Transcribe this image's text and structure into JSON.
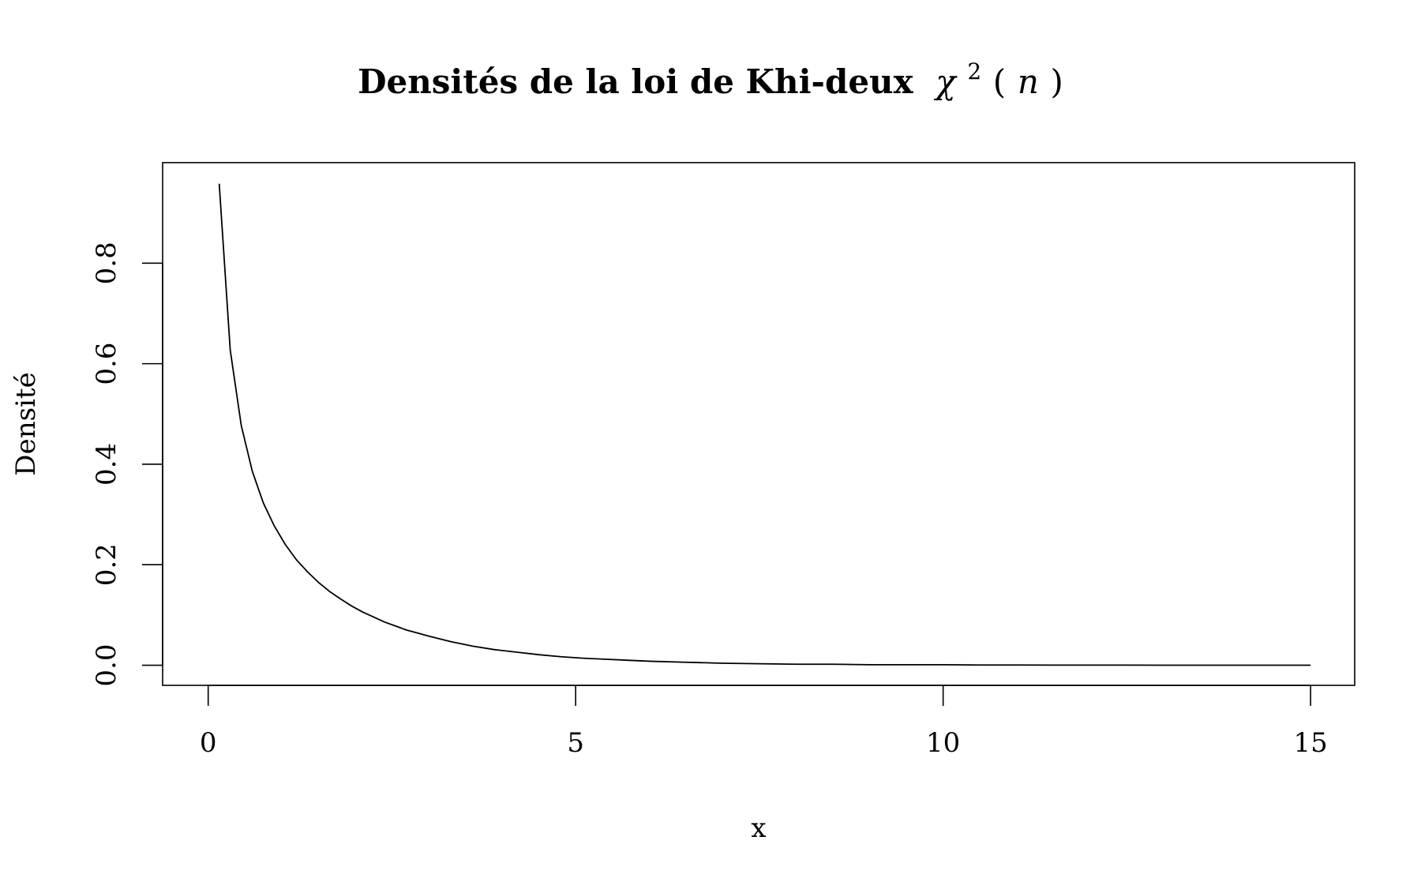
{
  "chart_data": {
    "type": "line",
    "title": {
      "text": "Densités de la loi de Khi-deux",
      "math_symbol": "χ",
      "math_superscript": "2",
      "math_open": "(",
      "math_var": "n",
      "math_close": ")"
    },
    "xlabel": "x",
    "ylabel": "Densité",
    "xlim": [
      -0.62,
      15.6
    ],
    "ylim": [
      -0.04,
      1.0
    ],
    "xticks": [
      0,
      5,
      10,
      15
    ],
    "xtick_labels": [
      "0",
      "5",
      "10",
      "15"
    ],
    "yticks": [
      0.0,
      0.2,
      0.4,
      0.6,
      0.8
    ],
    "ytick_labels": [
      "0.0",
      "0.2",
      "0.4",
      "0.6",
      "0.8"
    ],
    "grid": false,
    "legend": "none",
    "line_color": "#000000",
    "series": [
      {
        "x": [
          0.15,
          0.3,
          0.45,
          0.6,
          0.75,
          0.9,
          1.05,
          1.2,
          1.35,
          1.5,
          1.65,
          1.8,
          1.95,
          2.1,
          2.25,
          2.4,
          2.55,
          2.7,
          2.85,
          3.0,
          3.3,
          3.6,
          3.9,
          4.2,
          4.5,
          4.8,
          5.1,
          5.4,
          5.7,
          6.0,
          6.5,
          7.0,
          7.5,
          8.0,
          8.5,
          9.0,
          9.5,
          10.0,
          10.5,
          11.0,
          11.5,
          12.0,
          12.5,
          13.0,
          13.5,
          14.0,
          14.5,
          15.0
        ],
        "y": [
          0.958,
          0.627,
          0.477,
          0.386,
          0.323,
          0.277,
          0.24,
          0.21,
          0.186,
          0.165,
          0.147,
          0.132,
          0.118,
          0.106,
          0.096,
          0.086,
          0.078,
          0.07,
          0.064,
          0.058,
          0.047,
          0.038,
          0.031,
          0.026,
          0.021,
          0.017,
          0.014,
          0.012,
          0.01,
          0.008,
          0.006,
          0.004,
          0.003,
          0.002,
          0.002,
          0.001,
          0.001,
          0.001,
          0.0005,
          0.0004,
          0.0003,
          0.0002,
          0.0002,
          0.0001,
          0.0001,
          0.0001,
          0.0001,
          0.0001
        ]
      }
    ]
  }
}
